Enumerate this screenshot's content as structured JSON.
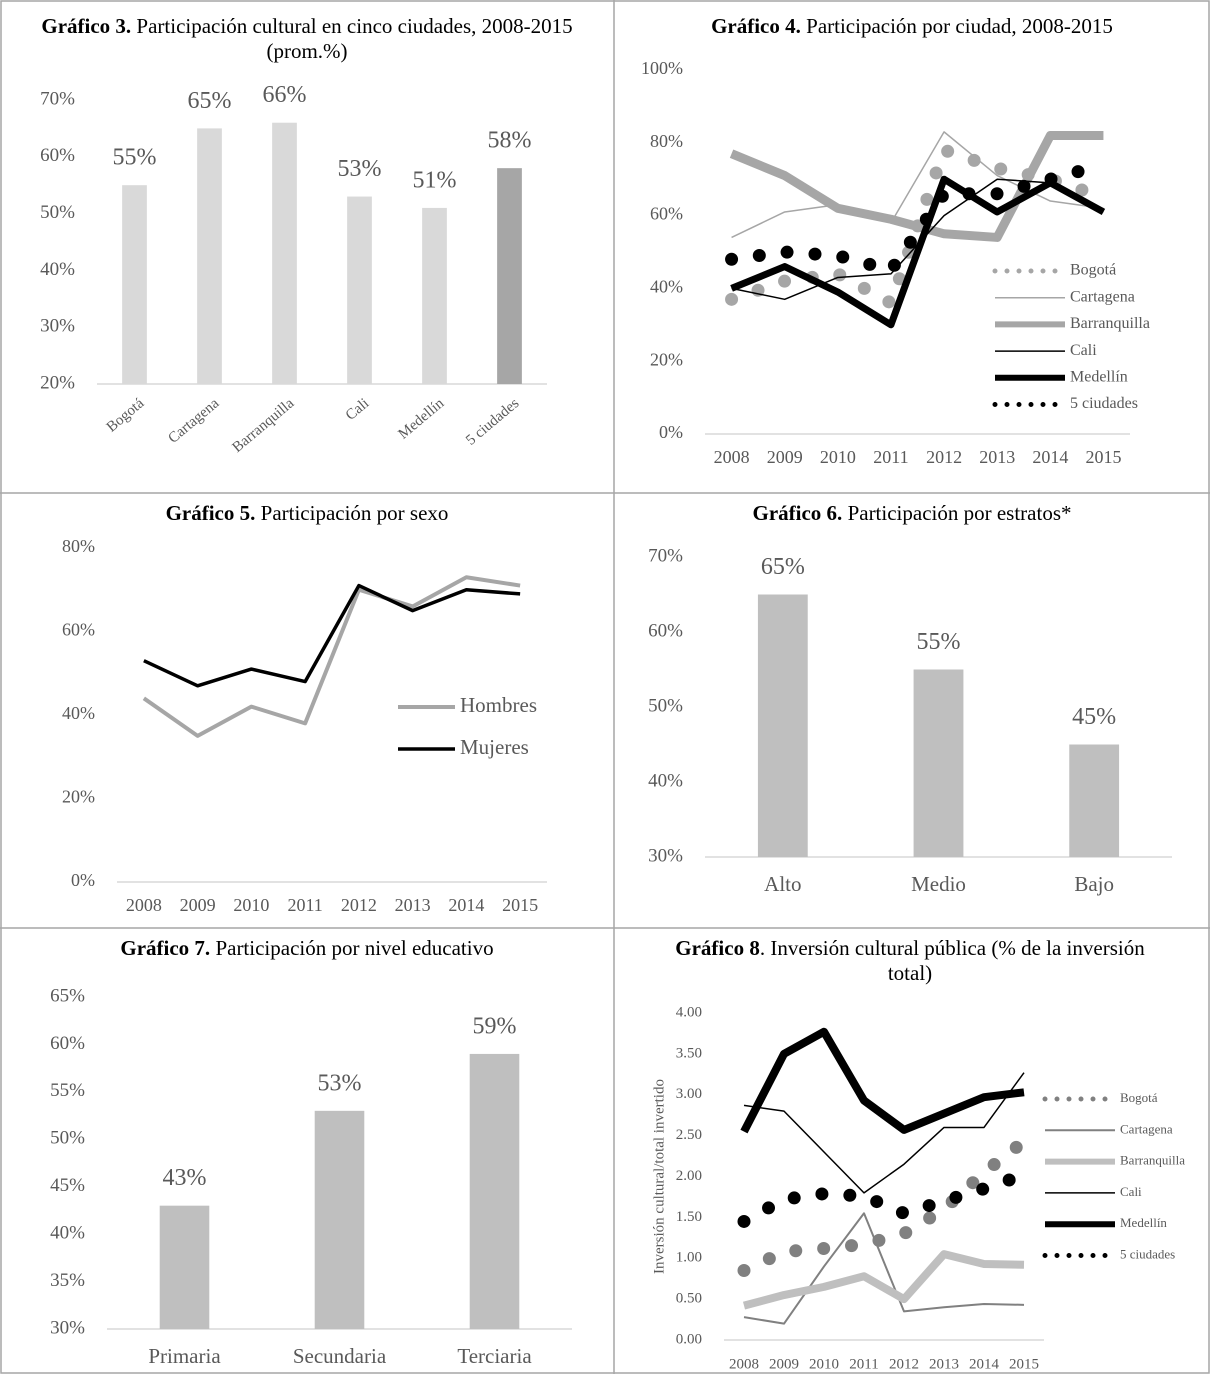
{
  "chart_data": [
    {
      "type": "bar",
      "title_label": "Gráfico 3.",
      "title": "Participación cultural en cinco ciudades, 2008-2015 (prom.%)",
      "categories": [
        "Bogotá",
        "Cartagena",
        "Barranquilla",
        "Cali",
        "Medellín",
        "5 ciudades"
      ],
      "values": [
        55,
        65,
        66,
        53,
        51,
        58
      ],
      "value_labels": [
        "55%",
        "65%",
        "66%",
        "53%",
        "51%",
        "58%"
      ],
      "colors": [
        "#d9d9d9",
        "#d9d9d9",
        "#d9d9d9",
        "#d9d9d9",
        "#d9d9d9",
        "#a6a6a6"
      ],
      "ylim": [
        20,
        70
      ],
      "yticks": [
        {
          "value": 20,
          "label": "20%"
        },
        {
          "value": 30,
          "label": "30%"
        },
        {
          "value": 40,
          "label": "40%"
        },
        {
          "value": 50,
          "label": "50%"
        },
        {
          "value": 60,
          "label": "60%"
        },
        {
          "value": 70,
          "label": "70%"
        }
      ]
    },
    {
      "type": "line",
      "title_label": "Gráfico 4.",
      "title": "Participación por ciudad, 2008-2015",
      "categories": [
        "2008",
        "2009",
        "2010",
        "2011",
        "2012",
        "2013",
        "2014",
        "2015"
      ],
      "series": [
        {
          "name": "Bogotá",
          "color": "#a6a6a6",
          "width": 13,
          "dotted": true,
          "values": [
            37,
            42,
            44,
            36,
            78,
            73,
            70,
            65
          ]
        },
        {
          "name": "Cartagena",
          "color": "#a6a6a6",
          "width": 1.5,
          "values": [
            54,
            61,
            63,
            58,
            83,
            71,
            64,
            62
          ]
        },
        {
          "name": "Barranquilla",
          "color": "#a6a6a6",
          "width": 9,
          "values": [
            77,
            71,
            62,
            59,
            55,
            54,
            82,
            82
          ]
        },
        {
          "name": "Cali",
          "color": "#000000",
          "width": 1.5,
          "values": [
            40,
            37,
            43,
            44,
            60,
            70,
            69,
            61
          ]
        },
        {
          "name": "Medellín",
          "color": "#000000",
          "width": 7,
          "values": [
            40,
            46,
            39,
            30,
            70,
            61,
            69,
            61
          ]
        },
        {
          "name": "5 ciudades",
          "color": "#000000",
          "width": 13,
          "dotted": true,
          "values": [
            48,
            50,
            49,
            45,
            66,
            66,
            70,
            74
          ]
        }
      ],
      "ylim": [
        0,
        100
      ],
      "yticks": [
        {
          "value": 0,
          "label": "0%"
        },
        {
          "value": 20,
          "label": "20%"
        },
        {
          "value": 40,
          "label": "40%"
        },
        {
          "value": 60,
          "label": "60%"
        },
        {
          "value": 80,
          "label": "80%"
        },
        {
          "value": 100,
          "label": "100%"
        }
      ]
    },
    {
      "type": "line",
      "title_label": "Gráfico 5.",
      "title": "Participación por sexo",
      "categories": [
        "2008",
        "2009",
        "2010",
        "2011",
        "2012",
        "2013",
        "2014",
        "2015"
      ],
      "series": [
        {
          "name": "Hombres",
          "color": "#a6a6a6",
          "width": 4,
          "values": [
            44,
            35,
            42,
            38,
            70,
            66,
            73,
            71
          ]
        },
        {
          "name": "Mujeres",
          "color": "#000000",
          "width": 3.5,
          "values": [
            53,
            47,
            51,
            48,
            71,
            65,
            70,
            69
          ]
        }
      ],
      "ylim": [
        0,
        80
      ],
      "yticks": [
        {
          "value": 0,
          "label": "0%"
        },
        {
          "value": 20,
          "label": "20%"
        },
        {
          "value": 40,
          "label": "40%"
        },
        {
          "value": 60,
          "label": "60%"
        },
        {
          "value": 80,
          "label": "80%"
        }
      ]
    },
    {
      "type": "bar",
      "title_label": "Gráfico 6.",
      "title": "Participación por estratos*",
      "categories": [
        "Alto",
        "Medio",
        "Bajo"
      ],
      "values": [
        65,
        55,
        45
      ],
      "value_labels": [
        "65%",
        "55%",
        "45%"
      ],
      "color": "#bfbfbf",
      "ylim": [
        30,
        70
      ],
      "yticks": [
        {
          "value": 30,
          "label": "30%"
        },
        {
          "value": 40,
          "label": "40%"
        },
        {
          "value": 50,
          "label": "50%"
        },
        {
          "value": 60,
          "label": "60%"
        },
        {
          "value": 70,
          "label": "70%"
        }
      ]
    },
    {
      "type": "bar",
      "title_label": "Gráfico 7.",
      "title": "Participación por nivel educativo",
      "categories": [
        "Primaria",
        "Secundaria",
        "Terciaria"
      ],
      "values": [
        43,
        53,
        59
      ],
      "value_labels": [
        "43%",
        "53%",
        "59%"
      ],
      "color": "#bfbfbf",
      "ylim": [
        30,
        65
      ],
      "yticks": [
        {
          "value": 30,
          "label": "30%"
        },
        {
          "value": 35,
          "label": "35%"
        },
        {
          "value": 40,
          "label": "40%"
        },
        {
          "value": 45,
          "label": "45%"
        },
        {
          "value": 50,
          "label": "50%"
        },
        {
          "value": 55,
          "label": "55%"
        },
        {
          "value": 60,
          "label": "60%"
        },
        {
          "value": 65,
          "label": "65%"
        }
      ]
    },
    {
      "type": "line",
      "title_label": "Gráfico 8",
      "title": ". Inversión cultural pública (% de la inversión total)",
      "y_label": "Inversión  cultural/total invertido",
      "categories": [
        "2008",
        "2009",
        "2010",
        "2011",
        "2012",
        "2013",
        "2014",
        "2015"
      ],
      "series": [
        {
          "name": "Bogotá",
          "color": "#808080",
          "width": 13,
          "dotted": true,
          "values": [
            0.85,
            1.08,
            1.12,
            1.17,
            1.3,
            1.6,
            2.05,
            2.43
          ]
        },
        {
          "name": "Cartagena",
          "color": "#808080",
          "width": 2,
          "values": [
            0.28,
            0.2,
            0.9,
            1.55,
            0.35,
            0.4,
            0.44,
            0.43
          ]
        },
        {
          "name": "Barranquilla",
          "color": "#bfbfbf",
          "width": 8,
          "values": [
            0.42,
            0.55,
            0.65,
            0.78,
            0.5,
            1.05,
            0.93,
            0.92
          ]
        },
        {
          "name": "Cali",
          "color": "#000000",
          "width": 1.5,
          "values": [
            2.87,
            2.8,
            2.3,
            1.8,
            2.15,
            2.6,
            2.6,
            3.27
          ]
        },
        {
          "name": "Medellín",
          "color": "#000000",
          "width": 8,
          "values": [
            2.55,
            3.5,
            3.77,
            2.93,
            2.57,
            2.77,
            2.97,
            3.03
          ]
        },
        {
          "name": "5 ciudades",
          "color": "#000000",
          "width": 13,
          "dotted": true,
          "values": [
            1.45,
            1.72,
            1.79,
            1.76,
            1.55,
            1.7,
            1.85,
            2.02
          ]
        }
      ],
      "ylim": [
        0,
        4
      ],
      "yticks": [
        {
          "value": 0,
          "label": "0.00"
        },
        {
          "value": 0.5,
          "label": "0.50"
        },
        {
          "value": 1,
          "label": "1.00"
        },
        {
          "value": 1.5,
          "label": "1.50"
        },
        {
          "value": 2,
          "label": "2.00"
        },
        {
          "value": 2.5,
          "label": "2.50"
        },
        {
          "value": 3,
          "label": "3.00"
        },
        {
          "value": 3.5,
          "label": "3.50"
        },
        {
          "value": 4,
          "label": "4.00"
        }
      ]
    }
  ]
}
